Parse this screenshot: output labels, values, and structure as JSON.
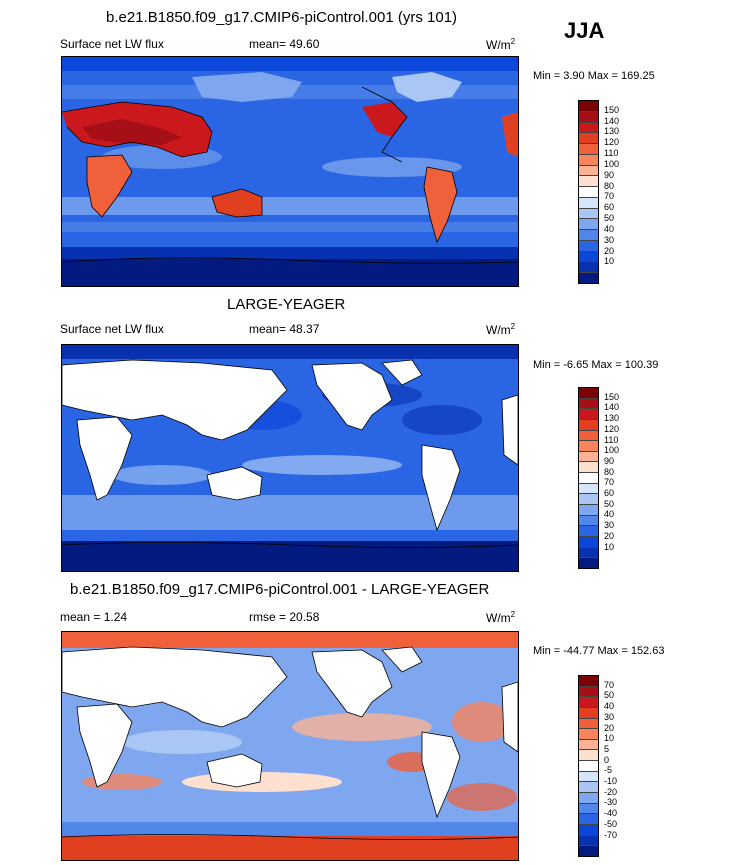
{
  "season_label": "JJA",
  "panels": [
    {
      "id": "model",
      "title": "b.e21.B1850.f09_g17.CMIP6-piControl.001 (yrs 101)",
      "left_label": "Surface net LW flux",
      "mid_label": "mean=  49.60",
      "units_base": "W/m",
      "units_exp": "2",
      "minmax": "Min =   3.90 Max = 169.25",
      "colorbar_labels": [
        "150",
        "140",
        "130",
        "120",
        "110",
        "100",
        "90",
        "80",
        "70",
        "60",
        "50",
        "40",
        "30",
        "20",
        "10"
      ],
      "colorbar_colors": [
        "#7a0403",
        "#a50f15",
        "#cb181d",
        "#e0401f",
        "#f0603a",
        "#f6855e",
        "#fab394",
        "#fde0d0",
        "#ffffff",
        "#d5e6fb",
        "#a9c6f5",
        "#7ea7ef",
        "#5287ea",
        "#2a66e3",
        "#0b47d8",
        "#0831b0",
        "#031a80"
      ]
    },
    {
      "id": "obs",
      "title": "LARGE-YEAGER",
      "left_label": "Surface net LW flux",
      "mid_label": "mean=  48.37",
      "units_base": "W/m",
      "units_exp": "2",
      "minmax": "Min =  -6.65 Max = 100.39",
      "colorbar_labels": [
        "150",
        "140",
        "130",
        "120",
        "110",
        "100",
        "90",
        "80",
        "70",
        "60",
        "50",
        "40",
        "30",
        "20",
        "10"
      ],
      "colorbar_colors": [
        "#7a0403",
        "#a50f15",
        "#cb181d",
        "#e0401f",
        "#f0603a",
        "#f6855e",
        "#fab394",
        "#fde0d0",
        "#ffffff",
        "#d5e6fb",
        "#a9c6f5",
        "#7ea7ef",
        "#5287ea",
        "#2a66e3",
        "#0b47d8",
        "#0831b0",
        "#031a80"
      ]
    },
    {
      "id": "diff",
      "title": "b.e21.B1850.f09_g17.CMIP6-piControl.001 - LARGE-YEAGER",
      "left_label": "mean =   1.24",
      "mid_label": "rmse =  20.58",
      "units_base": "W/m",
      "units_exp": "2",
      "minmax": "Min = -44.77 Max = 152.63",
      "colorbar_labels": [
        "70",
        "50",
        "40",
        "30",
        "20",
        "10",
        "5",
        "0",
        "-5",
        "-10",
        "-20",
        "-30",
        "-40",
        "-50",
        "-70"
      ],
      "colorbar_colors": [
        "#7a0403",
        "#a50f15",
        "#cb181d",
        "#e0401f",
        "#f0603a",
        "#f6855e",
        "#fab394",
        "#fde0d0",
        "#ffffff",
        "#d5e6fb",
        "#a9c6f5",
        "#7ea7ef",
        "#5287ea",
        "#2a66e3",
        "#0b47d8",
        "#0831b0",
        "#031a80"
      ]
    }
  ]
}
